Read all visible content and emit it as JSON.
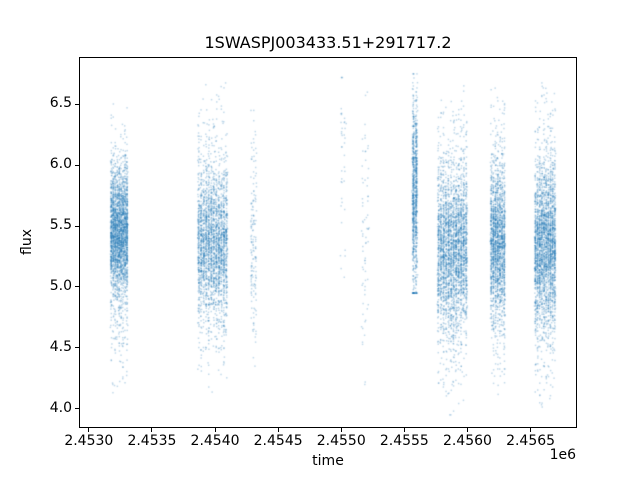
{
  "figure": {
    "background": "#ffffff"
  },
  "chart_data": {
    "type": "scatter",
    "title": "1SWASPJ003433.51+291717.2",
    "xlabel": "time",
    "ylabel": "flux",
    "offset_text": "1e6",
    "marker_color": "#1f77b4",
    "marker_alpha": 0.28,
    "xlim": [
      2452930,
      2456860
    ],
    "ylim": [
      3.85,
      6.88
    ],
    "xticks": [
      2453000,
      2453500,
      2454000,
      2454500,
      2455000,
      2455500,
      2456000,
      2456500
    ],
    "xtick_labels": [
      "2.4530",
      "2.4535",
      "2.4540",
      "2.4545",
      "2.4550",
      "2.4555",
      "2.4560",
      "2.4565"
    ],
    "yticks": [
      4.0,
      4.5,
      5.0,
      5.5,
      6.0,
      6.5
    ],
    "ytick_labels": [
      "4.0",
      "4.5",
      "5.0",
      "5.5",
      "6.0",
      "6.5"
    ],
    "grid": false,
    "legend": "none",
    "clusters": [
      {
        "x_min": 2453170,
        "x_max": 2453310,
        "n": 2600,
        "columns": 9,
        "flux_mean": 5.45,
        "flux_sd": 0.26,
        "core_frac": 0.82,
        "flux_min": 4.05,
        "flux_max": 6.55
      },
      {
        "x_min": 2453860,
        "x_max": 2454100,
        "n": 2600,
        "columns": 12,
        "flux_mean": 5.35,
        "flux_sd": 0.3,
        "core_frac": 0.8,
        "flux_min": 4.1,
        "flux_max": 6.72
      },
      {
        "x_min": 2454280,
        "x_max": 2454330,
        "n": 160,
        "columns": 3,
        "flux_mean": 5.4,
        "flux_sd": 0.45,
        "core_frac": 0.6,
        "flux_min": 4.35,
        "flux_max": 6.45
      },
      {
        "x_min": 2454990,
        "x_max": 2455040,
        "n": 40,
        "columns": 2,
        "flux_mean": 6.3,
        "flux_sd": 0.35,
        "core_frac": 0.5,
        "flux_min": 4.9,
        "flux_max": 6.72
      },
      {
        "x_min": 2455160,
        "x_max": 2455220,
        "n": 70,
        "columns": 3,
        "flux_mean": 5.5,
        "flux_sd": 0.5,
        "core_frac": 0.5,
        "flux_min": 4.15,
        "flux_max": 6.6
      },
      {
        "x_min": 2455560,
        "x_max": 2455605,
        "n": 900,
        "columns": 2,
        "flux_mean": 5.75,
        "flux_sd": 0.42,
        "core_frac": 0.85,
        "flux_min": 4.95,
        "flux_max": 6.75
      },
      {
        "x_min": 2455760,
        "x_max": 2456000,
        "n": 3000,
        "columns": 12,
        "flux_mean": 5.3,
        "flux_sd": 0.33,
        "core_frac": 0.78,
        "flux_min": 3.95,
        "flux_max": 6.72
      },
      {
        "x_min": 2456180,
        "x_max": 2456300,
        "n": 1900,
        "columns": 7,
        "flux_mean": 5.35,
        "flux_sd": 0.3,
        "core_frac": 0.8,
        "flux_min": 4.0,
        "flux_max": 6.75
      },
      {
        "x_min": 2456530,
        "x_max": 2456700,
        "n": 2700,
        "columns": 10,
        "flux_mean": 5.35,
        "flux_sd": 0.33,
        "core_frac": 0.78,
        "flux_min": 3.95,
        "flux_max": 6.75
      }
    ]
  }
}
